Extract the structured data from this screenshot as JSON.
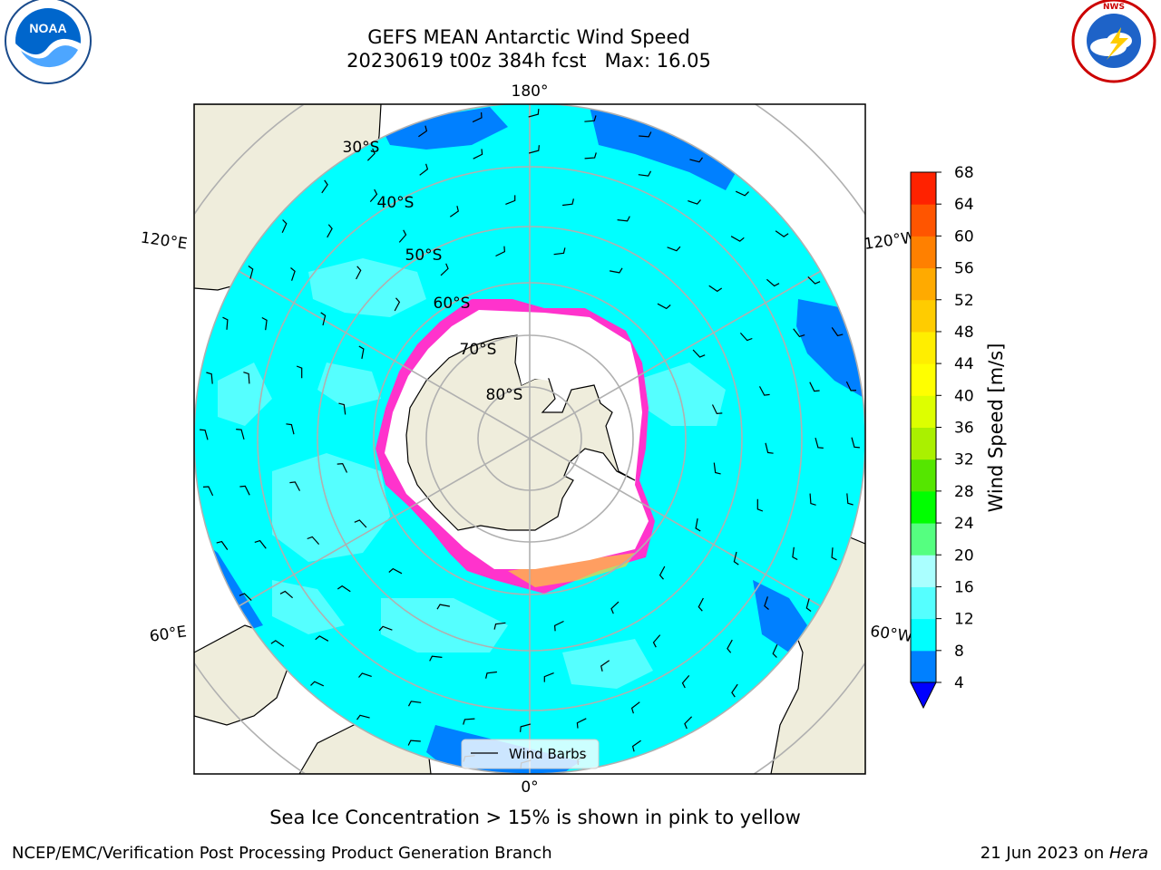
{
  "header": {
    "title_line1": "GEFS MEAN Antarctic Wind Speed",
    "title_line2": "20230619 t00z 384h fcst   Max: 16.05"
  },
  "logos": {
    "left": "NOAA",
    "left_ring": "NATIONAL OCEANIC AND ATMOSPHERIC ADMINISTRATION · U.S. DEPARTMENT OF COMMERCE",
    "right_ring": "NATIONAL WEATHER SERVICE"
  },
  "map": {
    "longitude_labels": {
      "top": "180°",
      "bottom": "0°",
      "upper_left": "120°E",
      "upper_right": "120°W",
      "lower_left": "60°E",
      "lower_right": "60°W"
    },
    "latitude_labels": [
      "30°S",
      "40°S",
      "50°S",
      "60°S",
      "70°S",
      "80°S"
    ],
    "legend_label": "Wind Barbs",
    "colors": {
      "land": "#efeddc",
      "ocean_base": "#00ffff",
      "ocean_strong": "#55ffff",
      "ocean_weak": "#0080ff",
      "ice_edge": "#ff33cc",
      "ice_inner": "#ffffff",
      "grid": "#b0b0b0"
    }
  },
  "colorbar": {
    "label": "Wind Speed [m/s]",
    "ticks": [
      "4",
      "8",
      "12",
      "16",
      "20",
      "24",
      "28",
      "32",
      "36",
      "40",
      "44",
      "48",
      "52",
      "56",
      "60",
      "64",
      "68"
    ],
    "colors": [
      "#0080ff",
      "#00ffff",
      "#55ffff",
      "#aaffff",
      "#55ff80",
      "#00ff00",
      "#55e600",
      "#aaf000",
      "#ddff00",
      "#ffff00",
      "#ffee00",
      "#ffcc00",
      "#ffaa00",
      "#ff8000",
      "#ff5500",
      "#ff2200"
    ],
    "extend_color": "#0000ff"
  },
  "caption": "Sea Ice Concentration > 15% is shown in pink to yellow",
  "footer": {
    "left": "NCEP/EMC/Verification Post Processing Product Generation Branch",
    "right_date": "21 Jun 2023 on ",
    "right_machine": "Hera"
  }
}
